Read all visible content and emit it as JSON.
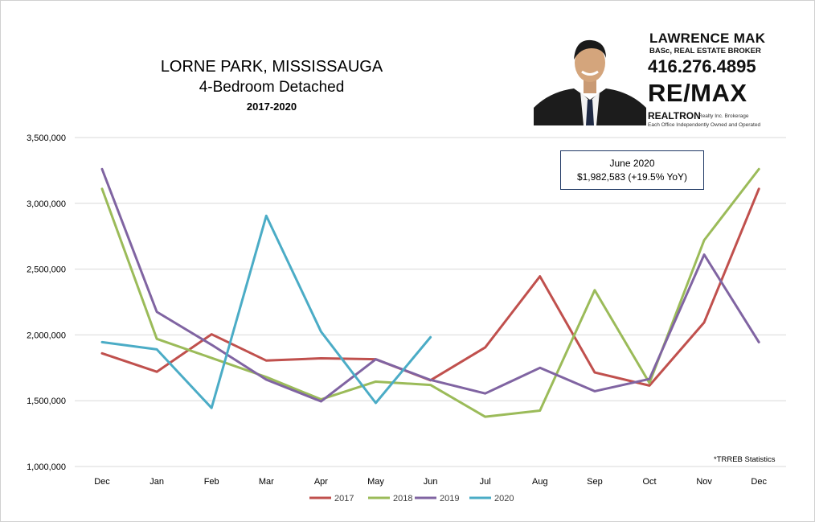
{
  "header": {
    "title_line1": "LORNE PARK, MISSISSAUGA",
    "title_line2": "4-Bedroom Detached",
    "title_line3": "2017-2020"
  },
  "agent_card": {
    "name": "LAWRENCE MAK",
    "credentials": "BASc, REAL ESTATE BROKER",
    "phone": "416.276.4895",
    "brand": "RE/MAX",
    "brokerage": "REALTRON",
    "brokerage_suffix": "Realty Inc. Brokerage",
    "office_note": "Each Office Independently Owned and Operated"
  },
  "callout": {
    "line1": "June 2020",
    "line2": "$1,982,583  (+19.5% YoY)"
  },
  "source_note": "*TRREB Statistics",
  "colors": {
    "2017": "#c0504d",
    "2018": "#9bbb59",
    "2019": "#8064a2",
    "2020": "#4bacc6",
    "grid": "#d9d9d9"
  },
  "chart_data": {
    "type": "line",
    "title": "LORNE PARK, MISSISSAUGA",
    "subtitle": "4-Bedroom Detached 2017-2020",
    "categories": [
      "Dec",
      "Jan",
      "Feb",
      "Mar",
      "Apr",
      "May",
      "Jun",
      "Jul",
      "Aug",
      "Sep",
      "Oct",
      "Nov",
      "Dec"
    ],
    "ylim": [
      1000000,
      3500000
    ],
    "yticks": [
      1000000,
      1500000,
      2000000,
      2500000,
      3000000,
      3500000
    ],
    "ytick_labels": [
      "1,000,000",
      "1,500,000",
      "2,000,000",
      "2,500,000",
      "3,000,000",
      "3,500,000"
    ],
    "grid": true,
    "legend_position": "bottom",
    "series": [
      {
        "name": "2017",
        "values": [
          1860000,
          1720000,
          2005000,
          1805000,
          1822000,
          1815000,
          1655000,
          1905000,
          2445000,
          1715000,
          1615000,
          2095000,
          3110000
        ]
      },
      {
        "name": "2018",
        "values": [
          3110000,
          1970000,
          1825000,
          1680000,
          1510000,
          1645000,
          1620000,
          1378000,
          1425000,
          2340000,
          1635000,
          2720000,
          3260000
        ]
      },
      {
        "name": "2019",
        "values": [
          3260000,
          2175000,
          1925000,
          1660000,
          1495000,
          1815000,
          1658000,
          1555000,
          1750000,
          1572000,
          1665000,
          2610000,
          1945000
        ]
      },
      {
        "name": "2020",
        "values": [
          1945000,
          1890000,
          1445000,
          2905000,
          2025000,
          1483000,
          1982583,
          null,
          null,
          null,
          null,
          null,
          null
        ]
      }
    ]
  }
}
